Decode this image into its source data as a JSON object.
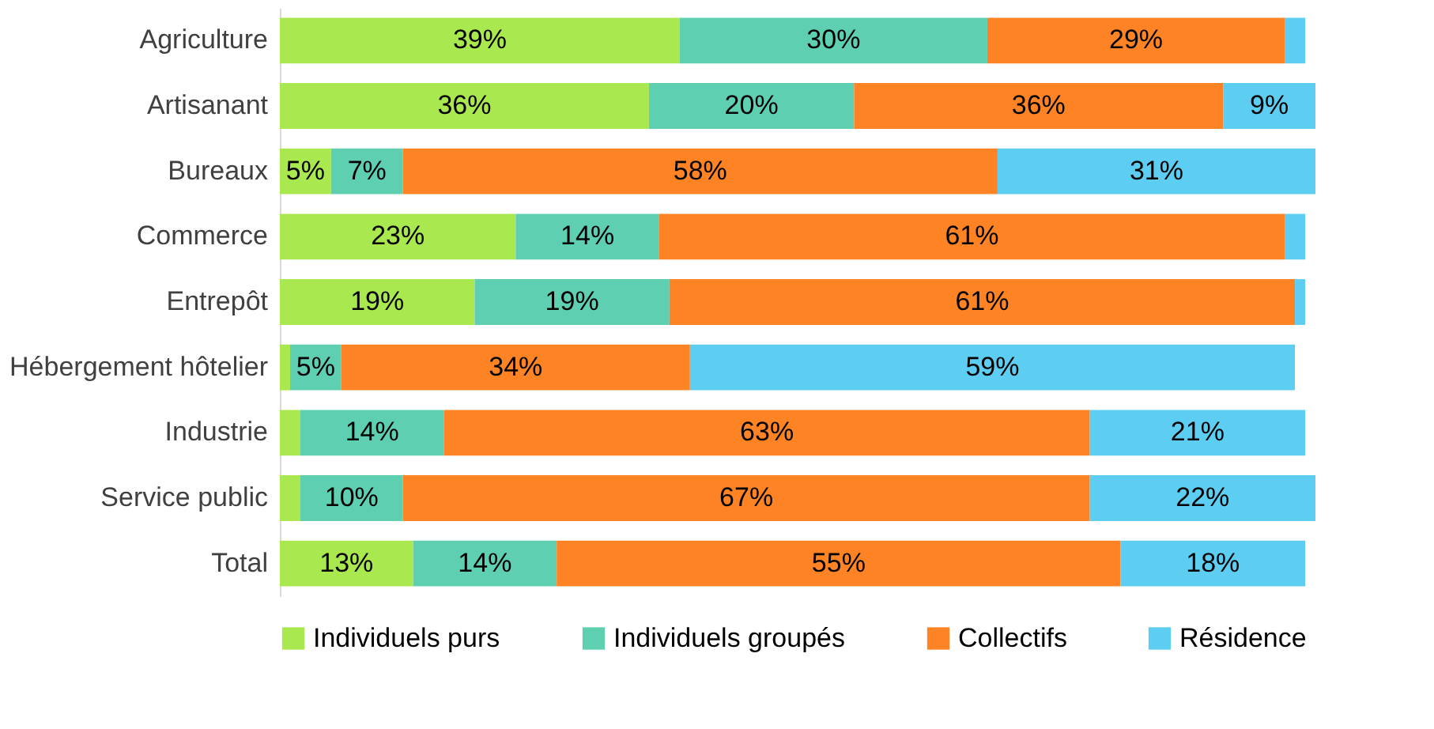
{
  "chart_data": {
    "type": "bar",
    "orientation": "horizontal",
    "stacked": true,
    "categories": [
      "Agriculture",
      "Artisanant",
      "Bureaux",
      "Commerce",
      "Entrepôt",
      "Hébergement hôtelier",
      "Industrie",
      "Service public",
      "Total"
    ],
    "xlim": [
      0,
      101
    ],
    "tick_labels": "y",
    "grid": false,
    "legend": "bottom",
    "series": [
      {
        "name": "Individuels purs",
        "color": "#a9e84f",
        "values": [
          39,
          36,
          5,
          23,
          19,
          1,
          2,
          2,
          13
        ],
        "value_labels": [
          "39%",
          "36%",
          "5%",
          "23%",
          "19%",
          null,
          null,
          null,
          "13%"
        ]
      },
      {
        "name": "Individuels groupés",
        "color": "#5ecfb1",
        "values": [
          30,
          20,
          7,
          14,
          19,
          5,
          14,
          10,
          14
        ],
        "value_labels": [
          "30%",
          "20%",
          "7%",
          "14%",
          "19%",
          "5%",
          "14%",
          "10%",
          "14%"
        ]
      },
      {
        "name": "Collectifs",
        "color": "#fd8324",
        "values": [
          29,
          36,
          58,
          61,
          61,
          34,
          63,
          67,
          55
        ],
        "value_labels": [
          "29%",
          "36%",
          "58%",
          "61%",
          "61%",
          "34%",
          "63%",
          "67%",
          "55%"
        ]
      },
      {
        "name": "Résidence",
        "color": "#5dcdf2",
        "values": [
          2,
          9,
          31,
          2,
          1,
          59,
          21,
          22,
          18
        ],
        "value_labels": [
          null,
          "9%",
          "31%",
          null,
          null,
          "59%",
          "21%",
          "22%",
          "18%"
        ]
      }
    ]
  }
}
